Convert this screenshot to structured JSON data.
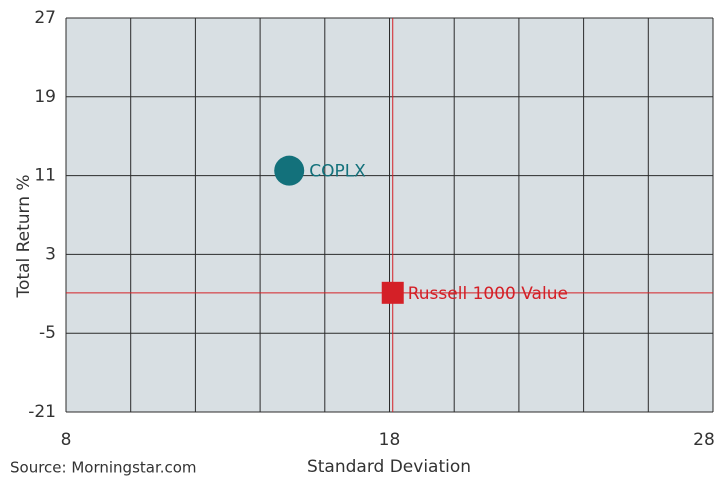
{
  "chart_data": {
    "type": "scatter",
    "xlabel": "Standard Deviation",
    "ylabel": "Total Return %",
    "source": "Source: Morningstar.com",
    "xlim": [
      8,
      28
    ],
    "xticks": [
      8,
      18,
      28
    ],
    "xgrid_values": [
      8,
      10,
      12,
      14,
      16,
      18,
      20,
      22,
      24,
      26,
      28
    ],
    "ylim": [
      -21,
      27
    ],
    "yticks": [
      -21,
      -5,
      3,
      11,
      19,
      27
    ],
    "grid": true,
    "series": [
      {
        "name": "COPLX",
        "color": "#13717b",
        "marker": "circle",
        "x": [
          14.9
        ],
        "values": [
          11.5
        ]
      },
      {
        "name": "Russell 1000 Value",
        "color": "#d42027",
        "marker": "square",
        "crosshair": true,
        "x": [
          18.1
        ],
        "values": [
          -0.9
        ]
      }
    ]
  }
}
